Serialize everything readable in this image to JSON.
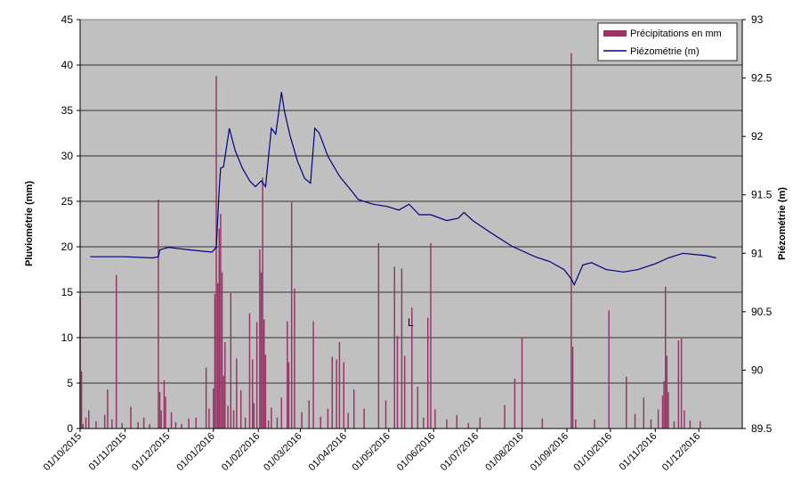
{
  "chart_data": {
    "type": "bar+line",
    "title": "",
    "ylabel_left": "Pluviométrie (mm)",
    "ylabel_right": "Piézométrie (m)",
    "ylim_left": [
      0,
      45
    ],
    "ylim_right": [
      89.5,
      93
    ],
    "yticks_left": [
      "0",
      "5",
      "10",
      "15",
      "20",
      "25",
      "30",
      "35",
      "40",
      "45"
    ],
    "yticks_right": [
      "89.5",
      "90",
      "90.5",
      "91",
      "91.5",
      "92",
      "92.5",
      "93"
    ],
    "x_start": "2015-10-01",
    "x_end": "2016-12-31",
    "xtick_labels": [
      "01/10/2015",
      "01/11/2015",
      "01/12/2015",
      "01/01/2016",
      "01/02/2016",
      "01/03/2016",
      "01/04/2016",
      "01/05/2016",
      "01/06/2016",
      "01/07/2016",
      "01/08/2016",
      "01/09/2016",
      "01/10/2016",
      "01/11/2016",
      "01/12/2016"
    ],
    "grid": true,
    "legend_position": "top-right",
    "annotation": "L",
    "colors": {
      "bars": "#993366",
      "line": "#000080",
      "plot_bg": "#c0c0c0"
    },
    "series": [
      {
        "name": "Précipitations en mm",
        "kind": "bar",
        "points": [
          [
            "2015-10-01",
            14.5
          ],
          [
            "2015-10-02",
            6.3
          ],
          [
            "2015-10-03",
            0.5
          ],
          [
            "2015-10-05",
            1.2
          ],
          [
            "2015-10-07",
            2.0
          ],
          [
            "2015-10-12",
            0.8
          ],
          [
            "2015-10-18",
            1.5
          ],
          [
            "2015-10-20",
            4.3
          ],
          [
            "2015-10-23",
            1.0
          ],
          [
            "2015-10-26",
            16.9
          ],
          [
            "2015-10-30",
            0.6
          ],
          [
            "2015-11-05",
            2.4
          ],
          [
            "2015-11-10",
            0.7
          ],
          [
            "2015-11-14",
            1.2
          ],
          [
            "2015-11-18",
            0.5
          ],
          [
            "2015-11-24",
            25.2
          ],
          [
            "2015-11-25",
            4.0
          ],
          [
            "2015-11-26",
            2.0
          ],
          [
            "2015-11-28",
            5.3
          ],
          [
            "2015-11-29",
            3.5
          ],
          [
            "2015-12-03",
            1.8
          ],
          [
            "2015-12-06",
            0.7
          ],
          [
            "2015-12-10",
            0.5
          ],
          [
            "2015-12-15",
            1.1
          ],
          [
            "2015-12-20",
            1.2
          ],
          [
            "2015-12-27",
            6.7
          ],
          [
            "2015-12-29",
            2.2
          ],
          [
            "2016-01-01",
            4.4
          ],
          [
            "2016-01-02",
            14.8
          ],
          [
            "2016-01-03",
            38.8
          ],
          [
            "2016-01-04",
            16.0
          ],
          [
            "2016-01-05",
            22.0
          ],
          [
            "2016-01-06",
            23.6
          ],
          [
            "2016-01-07",
            17.2
          ],
          [
            "2016-01-08",
            5.8
          ],
          [
            "2016-01-09",
            9.5
          ],
          [
            "2016-01-11",
            2.5
          ],
          [
            "2016-01-13",
            14.9
          ],
          [
            "2016-01-15",
            2.0
          ],
          [
            "2016-01-17",
            7.7
          ],
          [
            "2016-01-20",
            4.2
          ],
          [
            "2016-01-23",
            1.2
          ],
          [
            "2016-01-26",
            12.7
          ],
          [
            "2016-01-28",
            7.6
          ],
          [
            "2016-01-29",
            2.8
          ],
          [
            "2016-01-31",
            11.7
          ],
          [
            "2016-02-02",
            19.7
          ],
          [
            "2016-02-03",
            17.2
          ],
          [
            "2016-02-04",
            27.6
          ],
          [
            "2016-02-05",
            12.0
          ],
          [
            "2016-02-06",
            8.1
          ],
          [
            "2016-02-08",
            0.9
          ],
          [
            "2016-02-10",
            2.3
          ],
          [
            "2016-02-14",
            1.2
          ],
          [
            "2016-02-17",
            3.4
          ],
          [
            "2016-02-21",
            11.8
          ],
          [
            "2016-02-22",
            7.3
          ],
          [
            "2016-02-24",
            24.9
          ],
          [
            "2016-02-26",
            15.4
          ],
          [
            "2016-03-02",
            1.8
          ],
          [
            "2016-03-07",
            3.1
          ],
          [
            "2016-03-10",
            11.8
          ],
          [
            "2016-03-15",
            1.3
          ],
          [
            "2016-03-20",
            2.2
          ],
          [
            "2016-03-23",
            7.9
          ],
          [
            "2016-03-26",
            7.6
          ],
          [
            "2016-03-28",
            9.5
          ],
          [
            "2016-03-31",
            7.3
          ],
          [
            "2016-04-03",
            1.7
          ],
          [
            "2016-04-07",
            4.3
          ],
          [
            "2016-04-14",
            2.2
          ],
          [
            "2016-04-24",
            20.4
          ],
          [
            "2016-04-29",
            3.1
          ],
          [
            "2016-05-05",
            17.8
          ],
          [
            "2016-05-07",
            10.2
          ],
          [
            "2016-05-10",
            17.6
          ],
          [
            "2016-05-12",
            8.0
          ],
          [
            "2016-05-17",
            13.3
          ],
          [
            "2016-05-21",
            4.6
          ],
          [
            "2016-05-25",
            1.2
          ],
          [
            "2016-05-28",
            12.2
          ],
          [
            "2016-05-30",
            20.4
          ],
          [
            "2016-06-02",
            2.1
          ],
          [
            "2016-06-10",
            1.0
          ],
          [
            "2016-06-17",
            1.5
          ],
          [
            "2016-06-25",
            0.6
          ],
          [
            "2016-07-03",
            1.2
          ],
          [
            "2016-07-20",
            2.6
          ],
          [
            "2016-07-27",
            5.5
          ],
          [
            "2016-08-01",
            10.0
          ],
          [
            "2016-08-15",
            1.1
          ],
          [
            "2016-09-04",
            41.3
          ],
          [
            "2016-09-05",
            9.0
          ],
          [
            "2016-09-07",
            1.0
          ],
          [
            "2016-09-20",
            1.0
          ],
          [
            "2016-09-30",
            13.0
          ],
          [
            "2016-10-12",
            5.7
          ],
          [
            "2016-10-18",
            1.6
          ],
          [
            "2016-10-24",
            3.4
          ],
          [
            "2016-10-29",
            1.0
          ],
          [
            "2016-11-03",
            2.1
          ],
          [
            "2016-11-06",
            3.6
          ],
          [
            "2016-11-07",
            5.2
          ],
          [
            "2016-11-08",
            15.6
          ],
          [
            "2016-11-09",
            8.0
          ],
          [
            "2016-11-10",
            4.0
          ],
          [
            "2016-11-14",
            0.8
          ],
          [
            "2016-11-17",
            9.7
          ],
          [
            "2016-11-19",
            9.9
          ],
          [
            "2016-11-21",
            2.0
          ],
          [
            "2016-11-25",
            0.9
          ],
          [
            "2016-12-02",
            0.8
          ]
        ]
      },
      {
        "name": "Piézométrie (m)",
        "kind": "line",
        "axis": "right",
        "points": [
          [
            "2015-10-08",
            90.97
          ],
          [
            "2015-10-20",
            90.97
          ],
          [
            "2015-11-01",
            90.97
          ],
          [
            "2015-11-20",
            90.96
          ],
          [
            "2015-11-24",
            90.97
          ],
          [
            "2015-11-25",
            91.03
          ],
          [
            "2015-12-01",
            91.05
          ],
          [
            "2015-12-15",
            91.03
          ],
          [
            "2015-12-31",
            91.01
          ],
          [
            "2016-01-03",
            91.05
          ],
          [
            "2016-01-05",
            91.55
          ],
          [
            "2016-01-06",
            91.73
          ],
          [
            "2016-01-08",
            91.74
          ],
          [
            "2016-01-12",
            92.07
          ],
          [
            "2016-01-16",
            91.88
          ],
          [
            "2016-01-21",
            91.73
          ],
          [
            "2016-01-26",
            91.62
          ],
          [
            "2016-01-30",
            91.57
          ],
          [
            "2016-02-03",
            91.62
          ],
          [
            "2016-02-06",
            91.57
          ],
          [
            "2016-02-10",
            92.07
          ],
          [
            "2016-02-13",
            92.02
          ],
          [
            "2016-02-17",
            92.38
          ],
          [
            "2016-02-19",
            92.22
          ],
          [
            "2016-02-23",
            92.0
          ],
          [
            "2016-02-28",
            91.79
          ],
          [
            "2016-03-04",
            91.64
          ],
          [
            "2016-03-08",
            91.6
          ],
          [
            "2016-03-11",
            92.07
          ],
          [
            "2016-03-14",
            92.03
          ],
          [
            "2016-03-20",
            91.83
          ],
          [
            "2016-03-28",
            91.66
          ],
          [
            "2016-04-05",
            91.54
          ],
          [
            "2016-04-10",
            91.46
          ],
          [
            "2016-04-20",
            91.42
          ],
          [
            "2016-04-30",
            91.4
          ],
          [
            "2016-05-08",
            91.37
          ],
          [
            "2016-05-15",
            91.42
          ],
          [
            "2016-05-22",
            91.33
          ],
          [
            "2016-05-30",
            91.33
          ],
          [
            "2016-06-10",
            91.28
          ],
          [
            "2016-06-18",
            91.3
          ],
          [
            "2016-06-22",
            91.35
          ],
          [
            "2016-06-28",
            91.28
          ],
          [
            "2016-07-10",
            91.18
          ],
          [
            "2016-07-25",
            91.06
          ],
          [
            "2016-08-10",
            90.97
          ],
          [
            "2016-08-20",
            90.93
          ],
          [
            "2016-08-30",
            90.86
          ],
          [
            "2016-09-04",
            90.78
          ],
          [
            "2016-09-06",
            90.73
          ],
          [
            "2016-09-12",
            90.9
          ],
          [
            "2016-09-18",
            90.92
          ],
          [
            "2016-09-28",
            90.86
          ],
          [
            "2016-10-10",
            90.84
          ],
          [
            "2016-10-20",
            90.86
          ],
          [
            "2016-11-01",
            90.91
          ],
          [
            "2016-11-10",
            90.96
          ],
          [
            "2016-11-20",
            91.0
          ],
          [
            "2016-11-28",
            90.99
          ],
          [
            "2016-12-06",
            90.98
          ],
          [
            "2016-12-13",
            90.96
          ]
        ]
      }
    ]
  }
}
